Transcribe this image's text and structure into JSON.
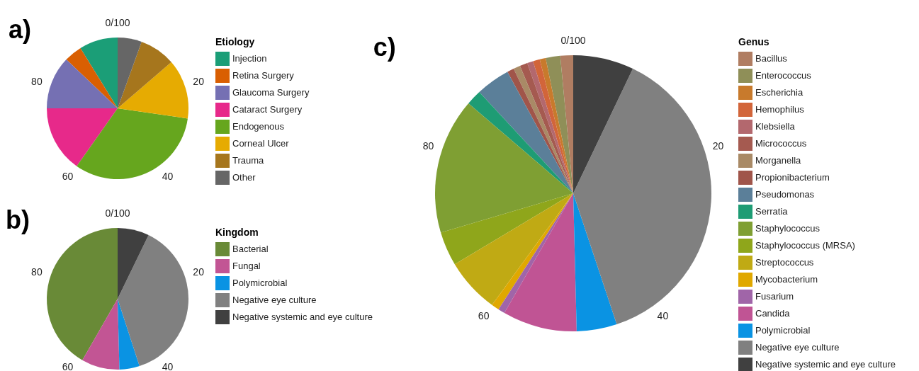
{
  "chart_data": [
    {
      "type": "pie",
      "title": "a)",
      "legend_title": "Etiology",
      "legend": "right",
      "categories": [
        "Injection",
        "Retina Surgery",
        "Glaucoma Surgery",
        "Cataract Surgery",
        "Endogenous",
        "Corneal Ulcer",
        "Trauma",
        "Other"
      ],
      "values": [
        8.8,
        4.1,
        12.1,
        15.2,
        32.5,
        13.6,
        8.2,
        5.5
      ],
      "colors": [
        "#1b9e77",
        "#d95f02",
        "#7570b3",
        "#e7298a",
        "#66a61e",
        "#e6ab02",
        "#a6761d",
        "#666666"
      ],
      "annotations": [
        "0/100",
        "20",
        "40",
        "60",
        "80"
      ]
    },
    {
      "type": "pie",
      "title": "b)",
      "legend_title": "Kingdom",
      "legend": "right",
      "categories": [
        "Bacterial",
        "Fungal",
        "Polymicrobial",
        "Negative eye culture",
        "Negative systemic and eye culture"
      ],
      "values": [
        41.7,
        8.7,
        4.6,
        37.8,
        7.2
      ],
      "colors": [
        "#698a37",
        "#c25594",
        "#0a93e3",
        "#808080",
        "#404040"
      ],
      "annotations": [
        "0/100",
        "20",
        "40",
        "60",
        "80"
      ]
    },
    {
      "type": "pie",
      "title": "c)",
      "legend_title": "Genus",
      "legend": "right",
      "categories": [
        "Bacillus",
        "Enterococcus",
        "Escherichia",
        "Hemophilus",
        "Klebsiella",
        "Micrococcus",
        "Morganella",
        "Propionibacterium",
        "Pseudomonas",
        "Serratia",
        "Staphylococcus",
        "Staphylococcus (MRSA)",
        "Streptococcus",
        "Mycobacterium",
        "Fusarium",
        "Candida",
        "Polymicrobial",
        "Negative eye culture",
        "Negative systemic and eye culture"
      ],
      "values": [
        1.5,
        1.7,
        0.7,
        0.8,
        0.7,
        0.9,
        0.8,
        0.8,
        4.0,
        1.8,
        15.9,
        4.0,
        6.4,
        0.9,
        0.8,
        8.7,
        4.7,
        37.8,
        7.1
      ],
      "colors": [
        "#b07d62",
        "#8f8f58",
        "#c87a2c",
        "#d2653a",
        "#b3686e",
        "#a55a50",
        "#a98a66",
        "#a0554a",
        "#5b7f99",
        "#1e9c74",
        "#7f9f33",
        "#8fa61b",
        "#c0aa14",
        "#e0a800",
        "#a065a8",
        "#c05494",
        "#0a93e3",
        "#808080",
        "#404040"
      ],
      "annotations": [
        "0/100",
        "20",
        "40",
        "60",
        "80"
      ]
    }
  ]
}
